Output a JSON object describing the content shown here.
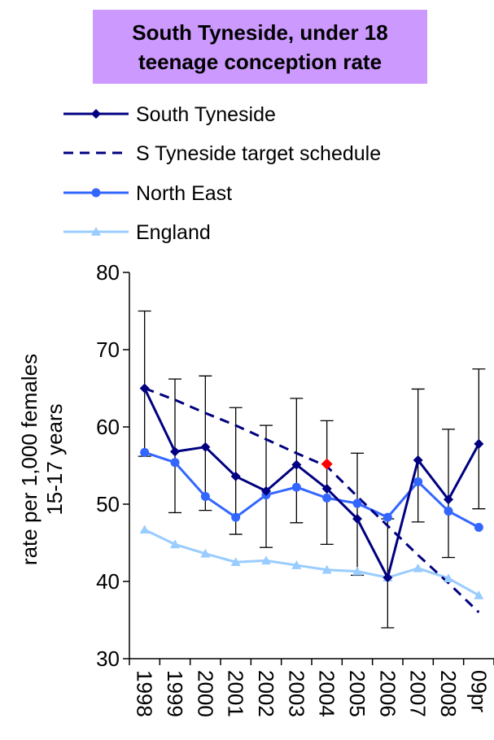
{
  "chart_data": {
    "type": "line",
    "title_lines": [
      "South Tyneside, under 18",
      "teenage conception rate"
    ],
    "ylabel_lines": [
      "rate per 1,000 females",
      "15-17 years"
    ],
    "xlabel": "",
    "categories": [
      "1998",
      "1999",
      "2000",
      "2001",
      "2002",
      "2003",
      "2004",
      "2005",
      "2006",
      "2007",
      "2008",
      "09pr"
    ],
    "ylim": [
      30,
      80
    ],
    "yticks": [
      30,
      40,
      50,
      60,
      70,
      80
    ],
    "grid": false,
    "legend_position": "top",
    "series": [
      {
        "name": "South Tyneside",
        "color": "#000080",
        "style": "solid",
        "marker": "diamond",
        "values": [
          65.0,
          56.8,
          57.4,
          53.6,
          51.7,
          55.1,
          52.0,
          48.1,
          40.5,
          55.7,
          50.6,
          57.8
        ],
        "error_low": [
          56.2,
          48.9,
          49.2,
          46.1,
          44.4,
          47.6,
          44.8,
          40.8,
          34.0,
          47.7,
          43.1,
          49.4
        ],
        "error_high": [
          75.0,
          66.2,
          66.6,
          62.5,
          60.2,
          63.7,
          60.8,
          56.6,
          48.1,
          64.9,
          59.7,
          67.5
        ]
      },
      {
        "name": "S Tyneside target schedule",
        "color": "#000080",
        "style": "dashed",
        "marker": "none",
        "values": [
          65.0,
          63.5,
          61.8,
          60.2,
          58.4,
          56.6,
          54.9,
          51.0,
          47.2,
          43.4,
          39.8,
          36.0
        ]
      },
      {
        "name": "North East",
        "color": "#3366ff",
        "style": "solid",
        "marker": "circle",
        "values": [
          56.7,
          55.4,
          51.0,
          48.3,
          51.2,
          52.2,
          50.8,
          50.1,
          48.3,
          52.9,
          49.1,
          47.0
        ]
      },
      {
        "name": "England",
        "color": "#99ccff",
        "style": "solid",
        "marker": "triangle",
        "values": [
          46.7,
          44.8,
          43.6,
          42.5,
          42.7,
          42.1,
          41.5,
          41.3,
          40.5,
          41.7,
          40.4,
          38.2
        ]
      }
    ],
    "highlight_point": {
      "category": "2004",
      "value": 55.2,
      "color": "#ff0000",
      "marker": "diamond"
    }
  }
}
